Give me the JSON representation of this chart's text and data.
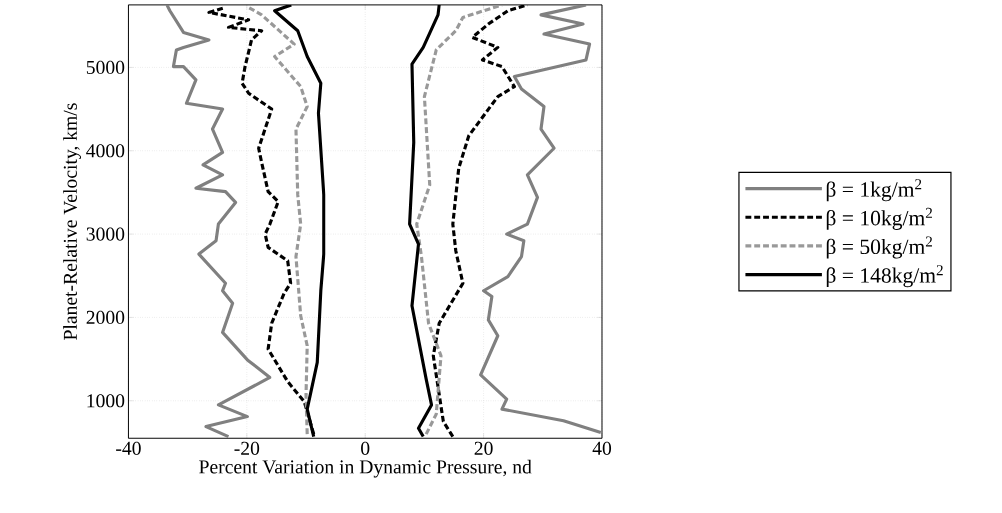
{
  "chart_data": {
    "type": "line",
    "xlabel": "Percent Variation in Dynamic Pressure, nd",
    "ylabel": "Planet-Relative Velocity, km/s",
    "xlim": [
      -40,
      40
    ],
    "ylim": [
      550,
      5750
    ],
    "xticks": [
      -40,
      -20,
      0,
      20,
      40
    ],
    "yticks": [
      1000,
      2000,
      3000,
      4000,
      5000
    ],
    "grid": true,
    "legend": "right",
    "series": [
      {
        "name": "β = 1kg/m$^{2}$",
        "color": "#808080",
        "line_style": "solid",
        "x": [
          -23.1,
          -26.9,
          -19.9,
          -24.8,
          -16.1,
          -19.9,
          -24.1,
          -22.4,
          -24.1,
          -23.6,
          -28.1,
          -25.2,
          -24.8,
          -21.9,
          -23.6,
          -28.6,
          -24.1,
          -27.4,
          -24.1,
          -25.8,
          -24.1,
          -30.2,
          -28.6,
          -30.7,
          -32.4,
          -31.9,
          -30.7,
          -26.4,
          -30.7,
          -33.0,
          -33.5
        ],
        "values": [
          570,
          690,
          810,
          950,
          1280,
          1490,
          1820,
          2170,
          2320,
          2410,
          2760,
          2920,
          3120,
          3380,
          3510,
          3550,
          3710,
          3830,
          3980,
          4260,
          4500,
          4570,
          4850,
          5010,
          5010,
          5210,
          5240,
          5330,
          5420,
          5680,
          5750
        ]
      },
      {
        "color": "#808080",
        "line_style": "solid",
        "x": [
          39.8,
          33.5,
          23.1,
          23.9,
          19.5,
          22.4,
          20.8,
          21.4,
          20.0,
          24.1,
          26.4,
          26.8,
          23.9,
          27.4,
          29.1,
          27.4,
          31.9,
          29.7,
          30.2,
          26.4,
          25.2,
          37.3,
          37.9,
          30.2,
          36.8,
          29.7,
          37.3
        ],
        "values": [
          620,
          760,
          900,
          1020,
          1310,
          1780,
          1970,
          2250,
          2320,
          2490,
          2730,
          2920,
          3000,
          3120,
          3440,
          3710,
          4030,
          4260,
          4530,
          4740,
          4890,
          5090,
          5280,
          5400,
          5520,
          5630,
          5750
        ]
      },
      {
        "name": "β = 10kg/m$^{2}$",
        "color": "#000000",
        "line_style": "dashed",
        "x": [
          -8.7,
          -10.3,
          -13.1,
          -16.4,
          -15.8,
          -13.7,
          -12.6,
          -13.1,
          -16.4,
          -16.9,
          -16.1,
          -14.7,
          -16.4,
          -17.5,
          -18.0,
          -15.8,
          -19.7,
          -20.8,
          -20.3,
          -19.2,
          -17.5,
          -23.1,
          -19.7,
          -26.4,
          -23.6
        ],
        "values": [
          600,
          990,
          1230,
          1620,
          1930,
          2290,
          2410,
          2680,
          2840,
          3000,
          3120,
          3390,
          3510,
          3860,
          4030,
          4500,
          4690,
          4810,
          5010,
          5330,
          5440,
          5480,
          5570,
          5660,
          5720
        ]
      },
      {
        "color": "#000000",
        "line_style": "dashed",
        "x": [
          14.8,
          13.2,
          11.5,
          12.5,
          16.5,
          15.3,
          14.8,
          15.8,
          17.5,
          22.4,
          25.2,
          23.1,
          19.8,
          22.4,
          18.1,
          20.8,
          24.1,
          27.4
        ],
        "values": [
          570,
          750,
          1540,
          1930,
          2410,
          2800,
          3120,
          3790,
          4180,
          4650,
          4770,
          5010,
          5090,
          5240,
          5360,
          5520,
          5680,
          5750
        ]
      },
      {
        "name": "β = 50kg/m$^{2}$",
        "color": "#999999",
        "line_style": "dashed",
        "x": [
          -9.8,
          -10.0,
          -9.8,
          -10.9,
          -11.7,
          -10.9,
          -11.4,
          -11.7,
          -9.8,
          -10.9,
          -15.3,
          -12.0,
          -17.5,
          -19.7
        ],
        "values": [
          600,
          1070,
          1660,
          2020,
          2730,
          3120,
          3470,
          4260,
          4530,
          4770,
          5130,
          5280,
          5630,
          5720
        ]
      },
      {
        "color": "#999999",
        "line_style": "dashed",
        "x": [
          10.3,
          12.0,
          12.8,
          10.7,
          9.5,
          8.7,
          10.9,
          10.0,
          12.0,
          15.3,
          16.5,
          23.1
        ],
        "values": [
          600,
          840,
          1540,
          1930,
          2730,
          3120,
          3590,
          4650,
          5210,
          5440,
          5600,
          5750
        ]
      },
      {
        "name": "β = 148kg/m$^{2}$",
        "color": "#000000",
        "line_style": "solid",
        "x": [
          -8.7,
          -9.8,
          -8.1,
          -7.5,
          -7.0,
          -7.0,
          -7.9,
          -7.5,
          -9.8,
          -11.4,
          -15.3,
          -12.5
        ],
        "values": [
          570,
          900,
          1460,
          2320,
          2760,
          3470,
          4450,
          4810,
          5130,
          5440,
          5680,
          5750
        ]
      },
      {
        "color": "#000000",
        "line_style": "solid",
        "x": [
          9.8,
          9.0,
          11.2,
          10.3,
          7.9,
          9.0,
          7.5,
          8.2,
          7.9,
          9.8,
          12.3,
          12.5
        ],
        "values": [
          570,
          670,
          950,
          1260,
          2140,
          2880,
          3120,
          4100,
          5040,
          5240,
          5630,
          5750
        ]
      }
    ]
  }
}
